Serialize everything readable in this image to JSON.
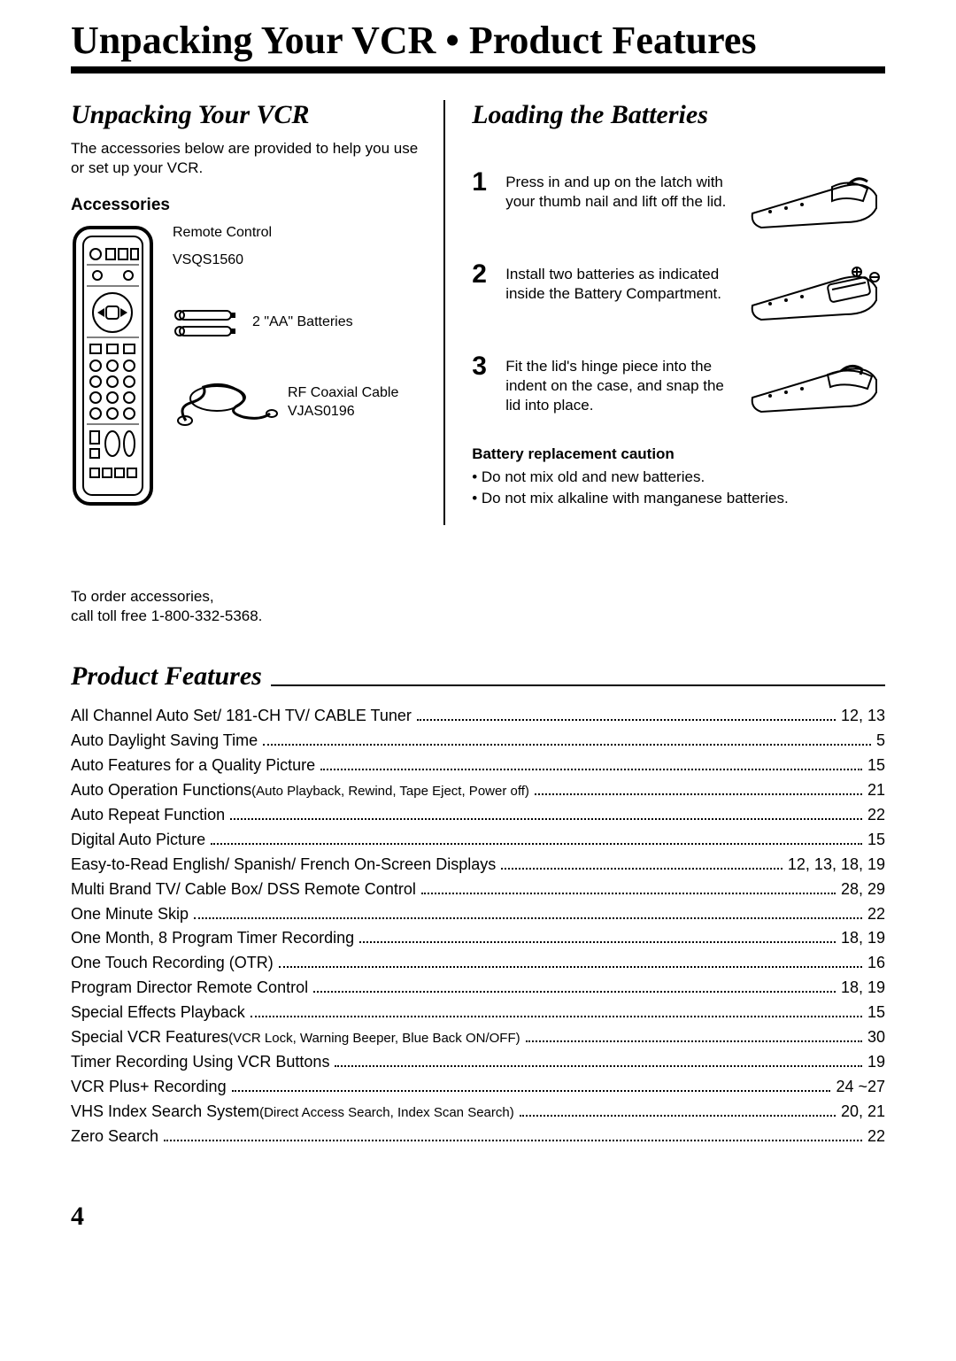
{
  "page_title": "Unpacking Your VCR • Product Features",
  "page_number": "4",
  "unpacking": {
    "heading": "Unpacking Your VCR",
    "intro": "The accessories below are provided to help you use or set up your VCR.",
    "accessories_heading": "Accessories",
    "items": {
      "remote": {
        "label": "Remote Control",
        "model": "VSQS1560"
      },
      "batteries": {
        "label": "2 \"AA\" Batteries"
      },
      "cable": {
        "label": "RF Coaxial Cable",
        "model": "VJAS0196"
      }
    },
    "order_text_l1": "To order accessories,",
    "order_text_l2": "call toll free 1-800-332-5368."
  },
  "loading": {
    "heading": "Loading the Batteries",
    "steps": [
      {
        "num": "1",
        "text": "Press in and up on the latch with your thumb nail and lift off the lid."
      },
      {
        "num": "2",
        "text": "Install two batteries as indicated inside the Battery Compartment."
      },
      {
        "num": "3",
        "text": "Fit the lid's hinge piece into the indent on the case, and snap the lid into place."
      }
    ],
    "caution_heading": "Battery replacement caution",
    "cautions": [
      "Do not mix old and new batteries.",
      "Do not mix alkaline with manganese batteries."
    ]
  },
  "features": {
    "heading": "Product Features",
    "list": [
      {
        "label": "All Channel Auto Set/ 181-CH TV/ CABLE Tuner",
        "sub": "",
        "page": "12, 13"
      },
      {
        "label": "Auto Daylight Saving Time",
        "sub": "",
        "page": "5"
      },
      {
        "label": "Auto Features for a Quality Picture",
        "sub": "",
        "page": "15"
      },
      {
        "label": "Auto Operation Functions ",
        "sub": "(Auto Playback, Rewind, Tape Eject, Power off)",
        "page": "21"
      },
      {
        "label": "Auto Repeat Function",
        "sub": "",
        "page": "22"
      },
      {
        "label": "Digital Auto Picture",
        "sub": "",
        "page": "15"
      },
      {
        "label": "Easy-to-Read English/ Spanish/ French On-Screen Displays",
        "sub": "",
        "page": "12, 13, 18, 19"
      },
      {
        "label": "Multi Brand TV/ Cable Box/ DSS Remote Control",
        "sub": "",
        "page": "28, 29"
      },
      {
        "label": "One Minute Skip",
        "sub": "",
        "page": "22"
      },
      {
        "label": "One Month, 8 Program Timer Recording",
        "sub": "",
        "page": "18, 19"
      },
      {
        "label": "One Touch Recording (OTR)",
        "sub": "",
        "page": "16"
      },
      {
        "label": "Program Director Remote Control",
        "sub": "",
        "page": "18, 19"
      },
      {
        "label": "Special Effects Playback",
        "sub": "",
        "page": "15"
      },
      {
        "label": "Special VCR Features ",
        "sub": "(VCR Lock, Warning Beeper, Blue Back ON/OFF)",
        "page": "30"
      },
      {
        "label": "Timer Recording Using VCR Buttons",
        "sub": "",
        "page": "19"
      },
      {
        "label": "VCR Plus+ Recording",
        "sub": "",
        "page": "24 ~27"
      },
      {
        "label": "VHS Index Search System ",
        "sub": "(Direct Access Search, Index Scan Search)",
        "page": "20, 21"
      },
      {
        "label": "Zero Search",
        "sub": "",
        "page": "22"
      }
    ]
  },
  "style": {
    "title_fontsize": 44,
    "section_heading_fontsize": 30,
    "body_fontsize": 17,
    "feature_fontsize": 18,
    "rule_thickness": 8,
    "colors": {
      "text": "#000000",
      "bg": "#ffffff"
    }
  }
}
